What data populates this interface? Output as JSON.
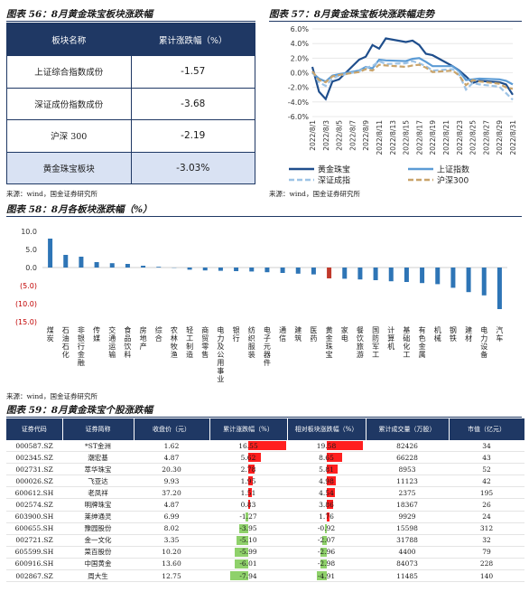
{
  "fig56": {
    "title": "图表 56：8月黄金珠宝板块涨跌幅",
    "headers": [
      "板块名称",
      "累计涨跌幅（%）"
    ],
    "rows": [
      {
        "name": "上证综合指数成份",
        "value": "-1.57"
      },
      {
        "name": "深证成份指数成份",
        "value": "-3.68"
      },
      {
        "name": "沪深 300",
        "value": "-2.19"
      },
      {
        "name": "黄金珠宝板块",
        "value": "-3.03%"
      }
    ]
  },
  "fig57": {
    "title": "图表 57：8月黄金珠宝板块涨跌幅走势",
    "chart_data": {
      "type": "line",
      "x": [
        "2022/8/1",
        "2022/8/2",
        "2022/8/3",
        "2022/8/4",
        "2022/8/5",
        "2022/8/8",
        "2022/8/9",
        "2022/8/10",
        "2022/8/11",
        "2022/8/12",
        "2022/8/15",
        "2022/8/16",
        "2022/8/17",
        "2022/8/18",
        "2022/8/19",
        "2022/8/22",
        "2022/8/23",
        "2022/8/24",
        "2022/8/25",
        "2022/8/26",
        "2022/8/29",
        "2022/8/30",
        "2022/8/31"
      ],
      "x_ticks": [
        "2022/8/1",
        "2022/8/3",
        "2022/8/5",
        "2022/8/7",
        "2022/8/9",
        "2022/8/11",
        "2022/8/13",
        "2022/8/15",
        "2022/8/17",
        "2022/8/19",
        "2022/8/21",
        "2022/8/23",
        "2022/8/25",
        "2022/8/27",
        "2022/8/29",
        "2022/8/31"
      ],
      "y_ticks": [
        "6.0%",
        "4.0%",
        "2.0%",
        "0.0%",
        "-2.0%",
        "-4.0%",
        "-6.0%"
      ],
      "ylim": [
        -6,
        6
      ],
      "series": [
        {
          "name": "黄金珠宝",
          "color": "#1f4e8c",
          "dash": "",
          "values": [
            0.8,
            -2.6,
            -3.6,
            -1.2,
            -0.9,
            1.8,
            2.2,
            3.8,
            3.3,
            4.7,
            4.2,
            4.4,
            3.8,
            2.6,
            2.4,
            0.9,
            0.3,
            -0.5,
            -1.4,
            -1.1,
            -1.3,
            -1.6,
            -3.0
          ]
        },
        {
          "name": "上证指数",
          "color": "#5b9bd5",
          "dash": "",
          "values": [
            0.0,
            -0.8,
            -1.2,
            -0.4,
            -0.2,
            0.3,
            0.8,
            0.6,
            1.8,
            1.7,
            1.6,
            1.9,
            2.0,
            1.5,
            0.9,
            0.9,
            0.2,
            -1.0,
            -0.9,
            -0.8,
            -0.9,
            -1.1,
            -1.6
          ]
        },
        {
          "name": "深证成指",
          "color": "#9dc3e6",
          "dash": "6,3",
          "values": [
            0.2,
            -1.3,
            -1.8,
            -0.8,
            -0.4,
            0.2,
            0.7,
            0.9,
            1.6,
            1.2,
            1.3,
            1.6,
            1.3,
            0.9,
            0.3,
            0.5,
            -0.3,
            -2.3,
            -1.4,
            -1.6,
            -1.9,
            -2.8,
            -3.7
          ]
        },
        {
          "name": "沪深300",
          "color": "#c9a46b",
          "dash": "6,3",
          "values": [
            0.2,
            -1.0,
            -1.3,
            -0.5,
            -0.3,
            0.1,
            0.5,
            0.3,
            1.1,
            1.0,
            0.8,
            1.0,
            1.1,
            0.7,
            0.1,
            0.3,
            -0.4,
            -1.7,
            -1.0,
            -1.2,
            -1.5,
            -2.0,
            -2.2
          ]
        }
      ]
    }
  },
  "fig58": {
    "title": "图表 58：8月各板块涨跌幅（%）",
    "chart_data": {
      "type": "bar",
      "y_ticks": [
        "10.0",
        "5.0",
        "0.0",
        "(5.0)",
        "(10.0)",
        "(15.0)"
      ],
      "ylim": [
        -15,
        10
      ],
      "highlight_color": "#c0392b",
      "bar_color": "#2e75b6",
      "categories": [
        "煤炭",
        "石油石化",
        "非银行金融",
        "传媒",
        "交通运输",
        "食品饮料",
        "房地产",
        "综合",
        "农林牧渔",
        "轻工制造",
        "商贸零售",
        "电力及公用事业",
        "银行",
        "纺织服装",
        "电子元器件",
        "通信",
        "建筑",
        "医药",
        "黄金珠宝",
        "家电",
        "餐饮旅游",
        "国防军工",
        "计算机",
        "基础化工",
        "有色金属",
        "机械",
        "钢铁",
        "建材",
        "电力设备",
        "汽车"
      ],
      "values": [
        8.0,
        3.5,
        3.0,
        1.5,
        1.2,
        1.0,
        0.5,
        0.2,
        0.0,
        -0.6,
        -0.8,
        -0.9,
        -1.0,
        -1.1,
        -1.3,
        -1.5,
        -1.7,
        -1.9,
        -3.0,
        -3.1,
        -3.3,
        -3.5,
        -3.8,
        -4.0,
        -4.3,
        -4.6,
        -5.6,
        -6.8,
        -7.7,
        -11.5
      ],
      "highlight_index": 18
    }
  },
  "source": "来源：wind，国金证券研究所",
  "fig59": {
    "title": "图表 59：8月黄金珠宝个股涨跌幅",
    "headers": [
      "证券代码",
      "证券简称",
      "收盘价（元）",
      "累计涨跌幅（%）",
      "相对板块涨跌幅（%）",
      "累计成交量（万股）",
      "市值（亿元）"
    ],
    "rows": [
      {
        "code": "000587.SZ",
        "name": "*ST金洲",
        "price": "1.62",
        "chg": 16.55,
        "chg_text": "16.55",
        "rel": 19.58,
        "rel_text": "19.58",
        "vol": "82426",
        "cap": "34"
      },
      {
        "code": "002345.SZ",
        "name": "潮宏基",
        "price": "4.87",
        "chg": 5.62,
        "chg_text": "5.62",
        "rel": 8.65,
        "rel_text": "8.65",
        "vol": "66228",
        "cap": "43"
      },
      {
        "code": "002731.SZ",
        "name": "萃华珠宝",
        "price": "20.30",
        "chg": 2.78,
        "chg_text": "2.78",
        "rel": 5.81,
        "rel_text": "5.81",
        "vol": "8953",
        "cap": "52"
      },
      {
        "code": "000026.SZ",
        "name": "飞亚达",
        "price": "9.93",
        "chg": 1.95,
        "chg_text": "1.95",
        "rel": 4.98,
        "rel_text": "4.98",
        "vol": "11123",
        "cap": "42"
      },
      {
        "code": "600612.SH",
        "name": "老凤祥",
        "price": "37.20",
        "chg": 1.51,
        "chg_text": "1.51",
        "rel": 4.54,
        "rel_text": "4.54",
        "vol": "2375",
        "cap": "195"
      },
      {
        "code": "002574.SZ",
        "name": "明牌珠宝",
        "price": "4.87",
        "chg": 0.83,
        "chg_text": "0.83",
        "rel": 3.86,
        "rel_text": "3.86",
        "vol": "18367",
        "cap": "26"
      },
      {
        "code": "603900.SH",
        "name": "莱绅通灵",
        "price": "6.99",
        "chg": -1.27,
        "chg_text": "-1.27",
        "rel": 1.76,
        "rel_text": "1.76",
        "vol": "9929",
        "cap": "24"
      },
      {
        "code": "600655.SH",
        "name": "豫园股份",
        "price": "8.02",
        "chg": -3.95,
        "chg_text": "-3.95",
        "rel": -0.92,
        "rel_text": "-0.92",
        "vol": "15598",
        "cap": "312"
      },
      {
        "code": "002721.SZ",
        "name": "金一文化",
        "price": "3.35",
        "chg": -5.1,
        "chg_text": "-5.10",
        "rel": -2.07,
        "rel_text": "-2.07",
        "vol": "31788",
        "cap": "32"
      },
      {
        "code": "605599.SH",
        "name": "菜百股份",
        "price": "10.20",
        "chg": -5.99,
        "chg_text": "-5.99",
        "rel": -2.96,
        "rel_text": "-2.96",
        "vol": "4400",
        "cap": "79"
      },
      {
        "code": "600916.SH",
        "name": "中国黄金",
        "price": "13.60",
        "chg": -6.01,
        "chg_text": "-6.01",
        "rel": -2.98,
        "rel_text": "-2.98",
        "vol": "84073",
        "cap": "228"
      },
      {
        "code": "002867.SZ",
        "name": "周大生",
        "price": "12.75",
        "chg": -7.94,
        "chg_text": "-7.94",
        "rel": -4.91,
        "rel_text": "-4.91",
        "vol": "11485",
        "cap": "140"
      }
    ]
  }
}
